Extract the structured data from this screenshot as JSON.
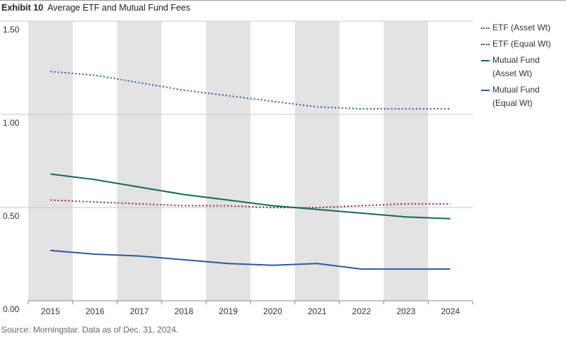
{
  "exhibit_label": "Exhibit 10",
  "title": "Average ETF and Mutual Fund Fees",
  "source": "Source: Morningstar.  Data as of Dec. 31, 2024.",
  "chart_data": {
    "type": "line",
    "title": "Average ETF and Mutual Fund Fees",
    "xlabel": "",
    "ylabel": "",
    "x": [
      "2015",
      "2016",
      "2017",
      "2018",
      "2019",
      "2020",
      "2021",
      "2022",
      "2023",
      "2024"
    ],
    "ylim": [
      0,
      1.5
    ],
    "yticks": [
      0.0,
      0.5,
      1.0,
      1.5
    ],
    "ytick_labels": [
      "0.00",
      "0.50",
      "1.00",
      "1.50"
    ],
    "grid": "horizontal",
    "alternating_year_shading": true,
    "legend_position": "right",
    "series": [
      {
        "name": "ETF (Asset Wt)",
        "color": "#2c5aa0",
        "style": "dotted",
        "values": [
          1.23,
          1.21,
          1.17,
          1.13,
          1.1,
          1.07,
          1.04,
          1.03,
          1.03,
          1.03
        ]
      },
      {
        "name": "ETF (Equal Wt)",
        "color": "#9b1e3a",
        "style": "dotted",
        "values": [
          0.54,
          0.53,
          0.52,
          0.51,
          0.51,
          0.5,
          0.5,
          0.51,
          0.52,
          0.52
        ]
      },
      {
        "name": "Mutual Fund (Asset Wt)",
        "color": "#136a57",
        "style": "solid",
        "values": [
          0.68,
          0.65,
          0.61,
          0.57,
          0.54,
          0.51,
          0.49,
          0.47,
          0.45,
          0.44
        ]
      },
      {
        "name": "Mutual Fund (Equal Wt)",
        "color": "#2c5aa0",
        "style": "solid",
        "values": [
          0.27,
          0.25,
          0.24,
          0.22,
          0.2,
          0.19,
          0.2,
          0.17,
          0.17,
          0.17
        ]
      }
    ]
  }
}
